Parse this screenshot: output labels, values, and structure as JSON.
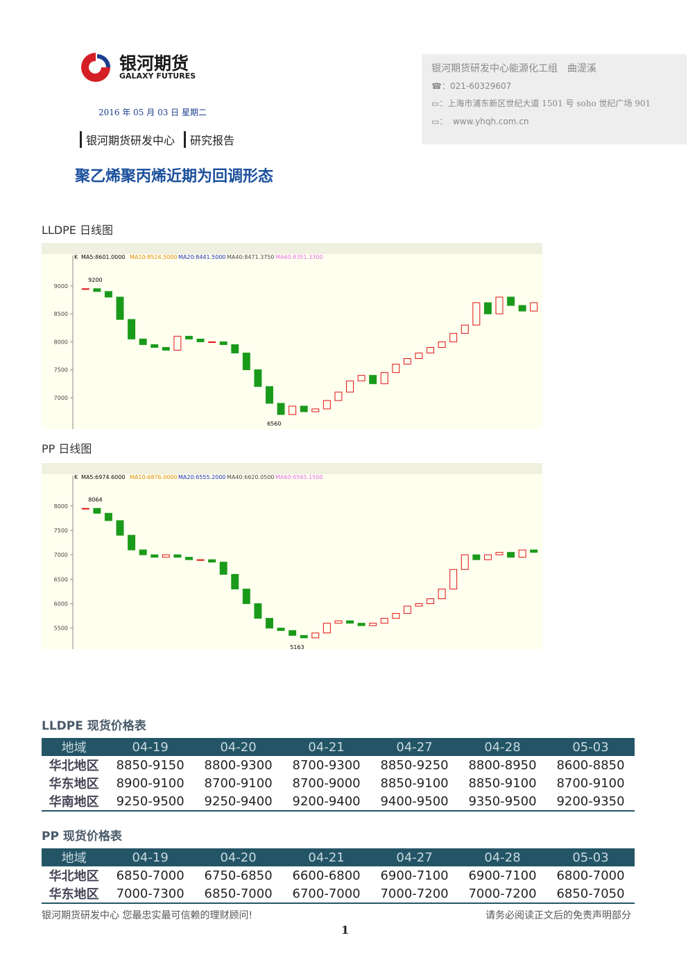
{
  "header": {
    "logo_cn": "银河期货",
    "logo_en": "GALAXY FUTURES",
    "date": "2016 年 05 月 03 日 星期二",
    "dept": "银河期货研发中心",
    "report_type": "研究报告"
  },
  "contact": {
    "team": "银河期货研发中心能源化工组　曲湜溪",
    "phone": "021-60329607",
    "address": "上海市浦东新区世纪大道 1501 号 soho 世纪广场 901",
    "website": "www.yhqh.com.cn"
  },
  "title": "聚乙烯聚丙烯近期为回调形态",
  "charts": [
    {
      "title": "LLDPE 日线图",
      "indicator": "K",
      "ma_labels": [
        "MA5:8601.0000",
        "MA10:8524.5000",
        "MA20:8441.5000",
        "MA40:8471.3750",
        "MA60:8351.3300"
      ],
      "high_label": "9200",
      "low_label": "6560",
      "ylim": [
        6440,
        9420
      ],
      "yticks": [
        9000,
        8500,
        8000,
        7500,
        7000
      ],
      "close": [
        8950,
        8900,
        8800,
        8400,
        8050,
        7950,
        7900,
        7850,
        8100,
        8050,
        8000,
        8000,
        7950,
        7800,
        7500,
        7200,
        6900,
        6700,
        6850,
        6750,
        6800,
        6950,
        7100,
        7300,
        7400,
        7250,
        7450,
        7600,
        7700,
        7800,
        7900,
        8000,
        8150,
        8300,
        8700,
        8500,
        8800,
        8650,
        8550,
        8700
      ]
    },
    {
      "title": "PP 日线图",
      "indicator": "K",
      "ma_labels": [
        "MA5:6974.6000",
        "MA10:6876.0000",
        "MA20:6555.2000",
        "MA40:6620.0500",
        "MA60:6565.1500"
      ],
      "high_label": "8064",
      "low_label": "5163",
      "ylim": [
        5070,
        8480
      ],
      "yticks": [
        8000,
        7500,
        7000,
        6500,
        6000,
        5500
      ],
      "close": [
        7950,
        7850,
        7700,
        7400,
        7100,
        7000,
        6950,
        7000,
        6950,
        6900,
        6900,
        6850,
        6600,
        6300,
        6000,
        5700,
        5500,
        5450,
        5350,
        5300,
        5400,
        5600,
        5650,
        5600,
        5550,
        5600,
        5700,
        5800,
        5950,
        6000,
        6100,
        6300,
        6700,
        7000,
        6900,
        7000,
        7050,
        6950,
        7100,
        7050
      ]
    }
  ],
  "tables": [
    {
      "title": "LLDPE 现货价格表",
      "columns": [
        "地域",
        "04-19",
        "04-20",
        "04-21",
        "04-27",
        "04-28",
        "05-03"
      ],
      "rows": [
        [
          "华北地区",
          "8850-9150",
          "8800-9300",
          "8700-9300",
          "8850-9250",
          "8800-8950",
          "8600-8850"
        ],
        [
          "华东地区",
          "8900-9100",
          "8700-9100",
          "8700-9000",
          "8850-9100",
          "8850-9100",
          "8700-9100"
        ],
        [
          "华南地区",
          "9250-9500",
          "9250-9400",
          "9200-9400",
          "9400-9500",
          "9350-9500",
          "9200-9350"
        ]
      ]
    },
    {
      "title": "PP 现货价格表",
      "columns": [
        "地域",
        "04-19",
        "04-20",
        "04-21",
        "04-27",
        "04-28",
        "05-03"
      ],
      "rows": [
        [
          "华北地区",
          "6850-7000",
          "6750-6850",
          "6600-6800",
          "6900-7100",
          "6900-7100",
          "6800-7000"
        ],
        [
          "华东地区",
          "7000-7300",
          "6850-7000",
          "6700-7000",
          "7000-7200",
          "7000-7200",
          "6850-7050"
        ]
      ]
    }
  ],
  "footer": {
    "left": "银河期货研发中心  您最忠实最可信赖的理财顾问!",
    "right": "请务必阅读正文后的免责声明部分",
    "page": "1"
  }
}
